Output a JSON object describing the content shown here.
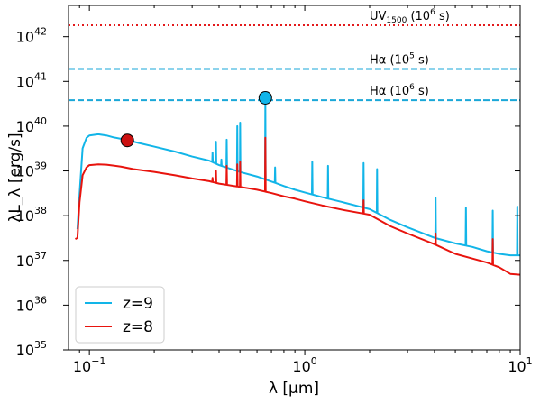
{
  "chart_data": {
    "type": "line",
    "xscale": "log",
    "yscale": "log",
    "xlim": [
      0.08,
      10
    ],
    "ylim": [
      1e+35,
      5e+42
    ],
    "xlabel": "λ [μm]",
    "ylabel": "λL_λ [erg/s]",
    "xticks": [
      {
        "value": 0.1,
        "base": "10",
        "exp": "−1"
      },
      {
        "value": 1,
        "base": "10",
        "exp": "0"
      },
      {
        "value": 10,
        "base": "10",
        "exp": "1"
      }
    ],
    "yticks": [
      {
        "value": 1e+35,
        "base": "10",
        "exp": "35"
      },
      {
        "value": 1e+36,
        "base": "10",
        "exp": "36"
      },
      {
        "value": 1e+37,
        "base": "10",
        "exp": "37"
      },
      {
        "value": 1e+38,
        "base": "10",
        "exp": "38"
      },
      {
        "value": 1e+39,
        "base": "10",
        "exp": "39"
      },
      {
        "value": 1e+40,
        "base": "10",
        "exp": "40"
      },
      {
        "value": 1e+41,
        "base": "10",
        "exp": "41"
      },
      {
        "value": 1e+42,
        "base": "10",
        "exp": "42"
      }
    ],
    "hlines": [
      {
        "y": 1.8e+42,
        "color": "#e31a1c",
        "style": "dotted",
        "label_main": "UV",
        "label_sub": "1500",
        "label_pre": " (10",
        "label_sup": "6",
        "label_post": " s)",
        "label_x": 2.0
      },
      {
        "y": 1.9e+41,
        "color": "#1aa7d8",
        "style": "dashed",
        "label_main": "Hα (10",
        "label_sub": "",
        "label_pre": "",
        "label_sup": "5",
        "label_post": " s)",
        "label_x": 2.0
      },
      {
        "y": 3.8e+40,
        "color": "#1aa7d8",
        "style": "dashed",
        "label_main": "Hα (10",
        "label_sub": "",
        "label_pre": "",
        "label_sup": "6",
        "label_post": " s)",
        "label_x": 2.0
      }
    ],
    "series": [
      {
        "name": "z=9",
        "color": "#12b5e8",
        "continuum": [
          [
            0.088,
            5e+37
          ],
          [
            0.09,
            3e+38
          ],
          [
            0.093,
            3.2e+39
          ],
          [
            0.097,
            5.5e+39
          ],
          [
            0.1,
            6.2e+39
          ],
          [
            0.11,
            6.6e+39
          ],
          [
            0.12,
            6.2e+39
          ],
          [
            0.13,
            5.6e+39
          ],
          [
            0.15,
            4.9e+39
          ],
          [
            0.17,
            4.2e+39
          ],
          [
            0.2,
            3.5e+39
          ],
          [
            0.25,
            2.7e+39
          ],
          [
            0.3,
            2.1e+39
          ],
          [
            0.36,
            1.7e+39
          ],
          [
            0.4,
            1.35e+39
          ],
          [
            0.5,
            9.5e+38
          ],
          [
            0.6,
            7.5e+38
          ],
          [
            0.7,
            5.8e+38
          ],
          [
            0.8,
            4.6e+38
          ],
          [
            0.9,
            3.8e+38
          ],
          [
            1.0,
            3.3e+38
          ],
          [
            1.2,
            2.6e+38
          ],
          [
            1.5,
            2e+38
          ],
          [
            2.0,
            1.4e+38
          ],
          [
            2.5,
            8e+37
          ],
          [
            3.0,
            5.5e+37
          ],
          [
            4.0,
            3.2e+37
          ],
          [
            5.0,
            2.4e+37
          ],
          [
            6.0,
            2e+37
          ],
          [
            7.0,
            1.6e+37
          ],
          [
            8.0,
            1.4e+37
          ],
          [
            9.0,
            1.3e+37
          ],
          [
            10.0,
            1.3e+37
          ]
        ],
        "lines": [
          [
            0.373,
            2.6e+39
          ],
          [
            0.387,
            4.5e+39
          ],
          [
            0.41,
            1.8e+39
          ],
          [
            0.434,
            5e+39
          ],
          [
            0.486,
            1e+40
          ],
          [
            0.501,
            1.2e+40
          ],
          [
            0.656,
            3.5e+40
          ],
          [
            0.728,
            1.2e+39
          ],
          [
            1.083,
            1.6e+39
          ],
          [
            1.282,
            1.3e+39
          ],
          [
            1.875,
            1.5e+39
          ],
          [
            2.166,
            1.1e+39
          ],
          [
            4.05,
            2.5e+38
          ],
          [
            5.6,
            1.5e+38
          ],
          [
            7.46,
            1.3e+38
          ],
          [
            9.7,
            1.6e+38
          ]
        ]
      },
      {
        "name": "z=8",
        "color": "#e8140e",
        "continuum": [
          [
            0.086,
            3e+37
          ],
          [
            0.088,
            3.2e+37
          ],
          [
            0.09,
            2e+38
          ],
          [
            0.093,
            8e+38
          ],
          [
            0.097,
            1.2e+39
          ],
          [
            0.1,
            1.35e+39
          ],
          [
            0.11,
            1.4e+39
          ],
          [
            0.12,
            1.38e+39
          ],
          [
            0.14,
            1.25e+39
          ],
          [
            0.16,
            1.1e+39
          ],
          [
            0.2,
            9.5e+38
          ],
          [
            0.25,
            8e+38
          ],
          [
            0.3,
            6.8e+38
          ],
          [
            0.36,
            5.9e+38
          ],
          [
            0.4,
            5.2e+38
          ],
          [
            0.5,
            4.4e+38
          ],
          [
            0.6,
            3.8e+38
          ],
          [
            0.7,
            3.2e+38
          ],
          [
            0.8,
            2.7e+38
          ],
          [
            0.9,
            2.4e+38
          ],
          [
            1.0,
            2.1e+38
          ],
          [
            1.2,
            1.7e+38
          ],
          [
            1.5,
            1.35e+38
          ],
          [
            2.0,
            1.05e+38
          ],
          [
            2.5,
            5.8e+37
          ],
          [
            3.0,
            4e+37
          ],
          [
            4.0,
            2.3e+37
          ],
          [
            5.0,
            1.4e+37
          ],
          [
            6.0,
            1.1e+37
          ],
          [
            7.0,
            9e+36
          ],
          [
            8.0,
            7e+36
          ],
          [
            9.0,
            5e+36
          ],
          [
            10.0,
            4.8e+36
          ]
        ],
        "lines": [
          [
            0.373,
            7e+38
          ],
          [
            0.387,
            1e+39
          ],
          [
            0.434,
            1.3e+39
          ],
          [
            0.486,
            1.4e+39
          ],
          [
            0.501,
            1.6e+39
          ],
          [
            0.656,
            5.5e+39
          ],
          [
            1.875,
            2.2e+38
          ],
          [
            4.05,
            4e+37
          ],
          [
            7.46,
            3e+37
          ]
        ]
      }
    ],
    "markers": [
      {
        "x": 0.15,
        "y": 4.8e+39,
        "color": "#cc1111",
        "series": "z=8"
      },
      {
        "x": 0.656,
        "y": 4.3e+40,
        "color": "#10b5ea",
        "series": "z=9"
      }
    ],
    "legend": {
      "placement": "lower-left"
    }
  }
}
